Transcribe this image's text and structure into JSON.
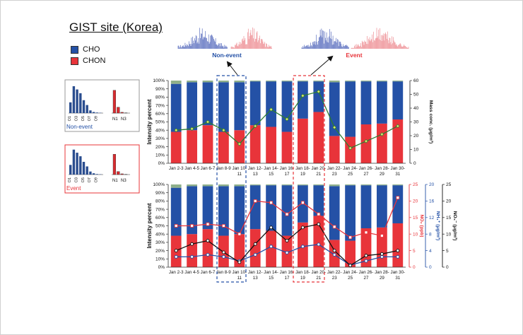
{
  "figure": {
    "title": "GIST site (Korea)",
    "legend": [
      {
        "label": "CHO",
        "color": "#2451a6"
      },
      {
        "label": "CHON",
        "color": "#e8343a"
      }
    ],
    "insets": [
      {
        "label": "Non-event",
        "color": "#2451a6",
        "cho_ticks": [
          "O1",
          "O3",
          "O5",
          "O7",
          "O9"
        ],
        "chon_ticks": [
          "N1",
          "N3"
        ],
        "cho": [
          0.4,
          1.0,
          0.88,
          0.74,
          0.48,
          0.3,
          0.1,
          0.04,
          0.02,
          0.01
        ],
        "chon": [
          0.85,
          0.22,
          0.03,
          0.01
        ]
      },
      {
        "label": "Event",
        "color": "#e8343a",
        "cho_ticks": [
          "O1",
          "O3",
          "O5",
          "O7",
          "O9"
        ],
        "chon_ticks": [
          "N1",
          "N3"
        ],
        "cho": [
          0.38,
          0.98,
          0.86,
          0.72,
          0.5,
          0.32,
          0.12,
          0.05,
          0.02,
          0.01
        ],
        "chon": [
          0.8,
          0.12,
          0.03,
          0.01
        ]
      }
    ],
    "spectra_labels": [
      "Non-event",
      "Event"
    ],
    "event_colors": {
      "nonevent": "#2451a6",
      "event": "#e8343a"
    }
  },
  "chart_data": [
    {
      "type": "bar",
      "stacked": true,
      "categories": [
        "Jan 2-3",
        "Jan 4-5",
        "Jan 6-7",
        "Jan 8-9",
        "Jan 10-11",
        "Jan 12-13",
        "Jan 14-15",
        "Jan 16-17",
        "Jan 18-19",
        "Jan 20-21",
        "Jan 22-23",
        "Jan 24-25",
        "Jan 26-27",
        "Jan 28-29",
        "Jan 30-31"
      ],
      "category_lines": [
        [
          "Jan 2-3"
        ],
        [
          "Jan 4-5"
        ],
        [
          "Jan 6-7"
        ],
        [
          "Jan 8-9"
        ],
        [
          "Jan 10-",
          "11"
        ],
        [
          "Jan 12-",
          "13"
        ],
        [
          "Jan 14-",
          "15"
        ],
        [
          "Jan 16-",
          "17"
        ],
        [
          "Jan 18-",
          "19"
        ],
        [
          "Jan 20-",
          "21"
        ],
        [
          "Jan 22-",
          "23"
        ],
        [
          "Jan 24-",
          "25"
        ],
        [
          "Jan 26-",
          "27"
        ],
        [
          "Jan 28-",
          "29"
        ],
        [
          "Jan 30-",
          "31"
        ]
      ],
      "series": [
        {
          "name": "CHON",
          "color": "#e8343a",
          "values": [
            38,
            40,
            46,
            38,
            40,
            46,
            44,
            38,
            54,
            62,
            33,
            32,
            47,
            48,
            53
          ]
        },
        {
          "name": "CHO",
          "color": "#2451a6",
          "values": [
            58,
            58,
            52,
            60,
            58,
            53,
            55,
            61,
            45,
            37,
            65,
            67,
            52,
            51,
            46
          ]
        },
        {
          "name": "other",
          "color": "#8fb08a",
          "values": [
            4,
            2,
            2,
            2,
            2,
            1,
            1,
            1,
            1,
            1,
            2,
            1,
            1,
            1,
            1
          ]
        }
      ],
      "ylabel": "Intensity percent",
      "ylim": [
        0,
        100
      ],
      "yticks": [
        "0%",
        "10%",
        "20%",
        "30%",
        "40%",
        "50%",
        "60%",
        "70%",
        "80%",
        "90%",
        "100%"
      ],
      "y2": {
        "label": "Mass conc. (μg/m³)",
        "lim": [
          0,
          60
        ],
        "ticks": [
          "0",
          "10",
          "20",
          "30",
          "40",
          "50",
          "60"
        ],
        "color": "#2e7d32",
        "values": [
          24,
          25,
          30,
          24,
          14,
          27,
          39,
          32,
          49,
          52,
          26,
          11,
          16,
          21,
          27
        ]
      }
    },
    {
      "type": "bar",
      "stacked": true,
      "categories": [
        "Jan 2-3",
        "Jan 4-5",
        "Jan 6-7",
        "Jan 8-9",
        "Jan 10-11",
        "Jan 12-13",
        "Jan 14-15",
        "Jan 16-17",
        "Jan 18-19",
        "Jan 20-21",
        "Jan 22-23",
        "Jan 24-25",
        "Jan 26-27",
        "Jan 28-29",
        "Jan 30-31"
      ],
      "category_lines": [
        [
          "Jan 2-3"
        ],
        [
          "Jan 4-5"
        ],
        [
          "Jan 6-7"
        ],
        [
          "Jan 8-9"
        ],
        [
          "Jan 10-",
          "11"
        ],
        [
          "Jan 12-",
          "13"
        ],
        [
          "Jan 14-",
          "15"
        ],
        [
          "Jan 16-",
          "17"
        ],
        [
          "Jan 18-",
          "19"
        ],
        [
          "Jan 20-",
          "21"
        ],
        [
          "Jan 22-",
          "23"
        ],
        [
          "Jan 24-",
          "25"
        ],
        [
          "Jan 26-",
          "27"
        ],
        [
          "Jan 28-",
          "29"
        ],
        [
          "Jan 30-",
          "31"
        ]
      ],
      "series": [
        {
          "name": "CHON",
          "color": "#e8343a",
          "values": [
            38,
            40,
            46,
            38,
            40,
            46,
            44,
            38,
            54,
            62,
            33,
            32,
            47,
            48,
            53
          ]
        },
        {
          "name": "CHO",
          "color": "#2451a6",
          "values": [
            58,
            58,
            52,
            60,
            58,
            53,
            55,
            61,
            45,
            37,
            65,
            67,
            52,
            51,
            46
          ]
        },
        {
          "name": "other",
          "color": "#8fb08a",
          "values": [
            4,
            2,
            2,
            2,
            2,
            1,
            1,
            1,
            1,
            1,
            2,
            1,
            1,
            1,
            1
          ]
        }
      ],
      "ylabel": "Intensity percent",
      "ylim": [
        0,
        100
      ],
      "yticks": [
        "0%",
        "10%",
        "20%",
        "30%",
        "40%",
        "50%",
        "60%",
        "70%",
        "80%",
        "90%",
        "100%"
      ],
      "y_extra": [
        {
          "label": "NO₂ (ppb)",
          "lim": [
            0,
            25
          ],
          "ticks": [
            "0",
            "5",
            "10",
            "15",
            "20",
            "25"
          ],
          "color": "#e8343a",
          "values": [
            12.5,
            12.5,
            13,
            12.5,
            10,
            20,
            19.5,
            16,
            19.5,
            16,
            12.2,
            9,
            10.5,
            9.5,
            21
          ]
        },
        {
          "label": "NH₄⁺ (μg/m³)",
          "lim": [
            0,
            20
          ],
          "ticks": [
            "0",
            "4",
            "8",
            "12",
            "16",
            "20"
          ],
          "color": "#2451a6",
          "values": [
            2.5,
            2.5,
            3,
            2.5,
            1.5,
            3,
            5,
            3.5,
            5,
            5.5,
            3,
            0.5,
            1.5,
            2.5,
            2.5
          ]
        },
        {
          "label": "NO₃⁻ (μg/m³)",
          "lim": [
            0,
            25
          ],
          "ticks": [
            "0",
            "5",
            "10",
            "15",
            "20",
            "25"
          ],
          "color": "#111111",
          "values": [
            5,
            7,
            8,
            4.5,
            1.5,
            7,
            12,
            8,
            12,
            13,
            5,
            0.5,
            3.5,
            4,
            5
          ]
        }
      ]
    }
  ]
}
